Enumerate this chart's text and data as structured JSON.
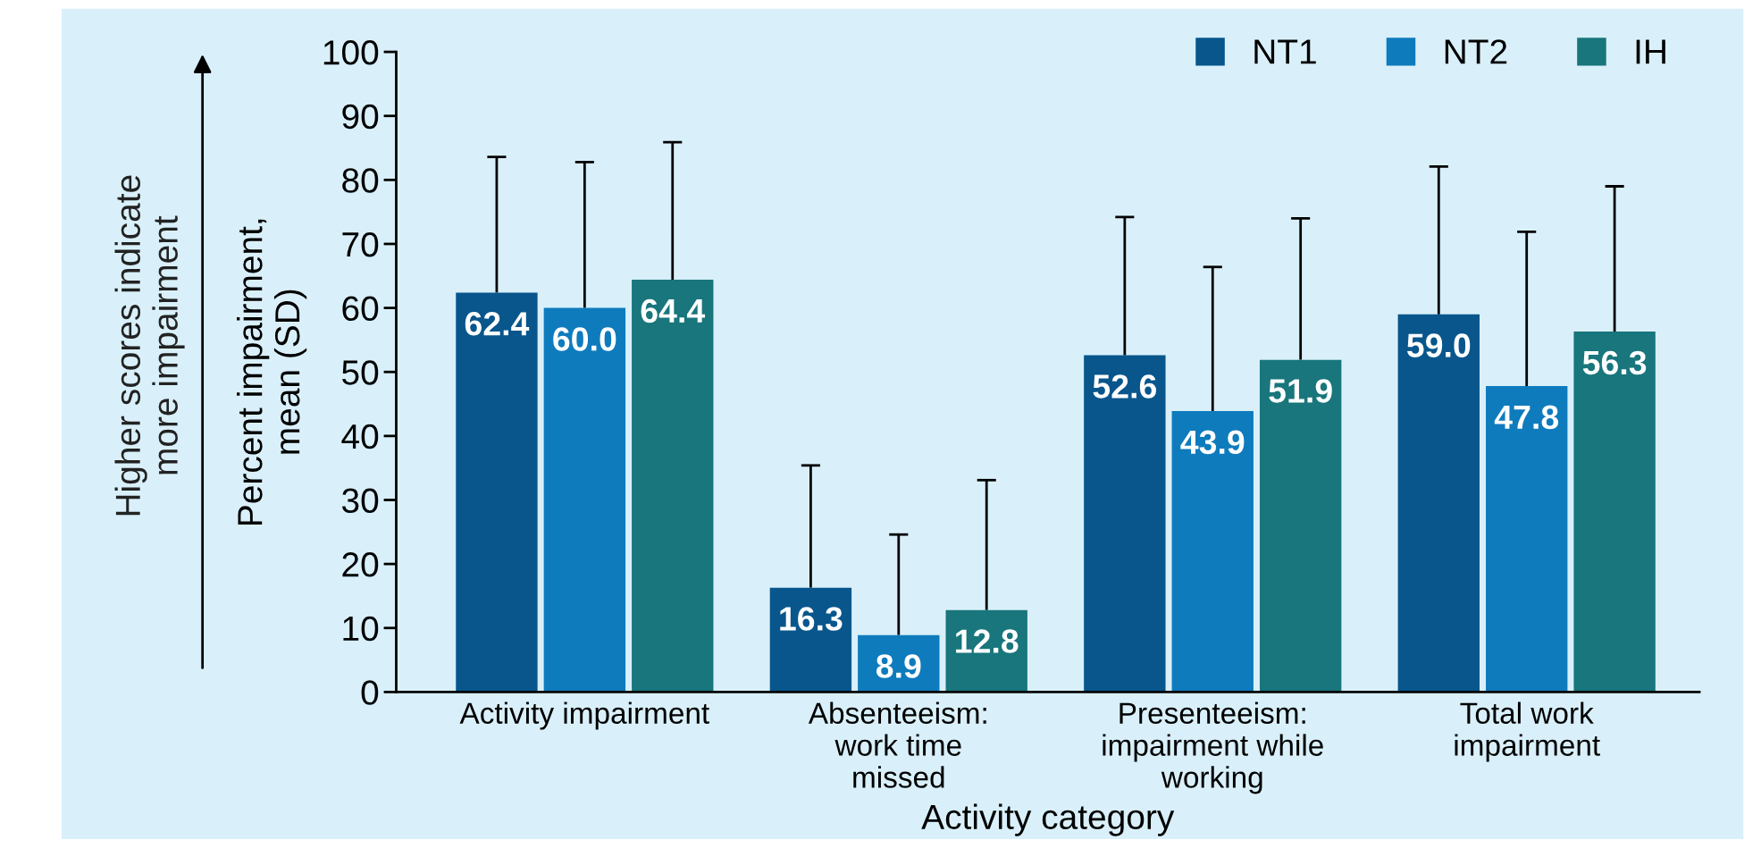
{
  "chart_data": {
    "type": "bar",
    "xlabel": "Activity category",
    "ylabel": "Percent impairment,\nmean (SD)",
    "annotations": [
      "Higher scores indicate\nmore impairment"
    ],
    "categories": [
      "Activity impairment",
      "Absenteeism:\nwork time\nmissed",
      "Presenteeism:\nimpairment while\nworking",
      "Total work\nimpairment"
    ],
    "series": [
      {
        "name": "NT1",
        "color": "#08568c",
        "values": [
          62.4,
          16.3,
          52.6,
          59.0
        ],
        "value_labels": [
          "62.4",
          "16.3",
          "52.6",
          "59.0"
        ],
        "errors": [
          [
            62.4,
            83.6
          ],
          [
            16.3,
            35.4
          ],
          [
            52.6,
            74.2
          ],
          [
            59.0,
            82.1
          ]
        ]
      },
      {
        "name": "NT2",
        "color": "#0e7bbd",
        "values": [
          60.0,
          8.9,
          43.9,
          47.8
        ],
        "value_labels": [
          "60.0",
          "8.9",
          "43.9",
          "47.8"
        ],
        "errors": [
          [
            60.0,
            82.8
          ],
          [
            8.9,
            24.6
          ],
          [
            43.9,
            66.4
          ],
          [
            47.8,
            71.9
          ]
        ]
      },
      {
        "name": "IH",
        "color": "#18767c",
        "values": [
          64.4,
          12.8,
          51.9,
          56.3
        ],
        "value_labels": [
          "64.4",
          "12.8",
          "51.9",
          "56.3"
        ],
        "errors": [
          [
            64.4,
            85.9
          ],
          [
            12.8,
            33.1
          ],
          [
            51.9,
            74.0
          ],
          [
            56.3,
            79.0
          ]
        ]
      }
    ],
    "ylim": [
      0,
      100
    ],
    "yticks": [
      0,
      10,
      20,
      30,
      40,
      50,
      60,
      70,
      80,
      90,
      100
    ],
    "legend": "top right",
    "grid": false
  }
}
